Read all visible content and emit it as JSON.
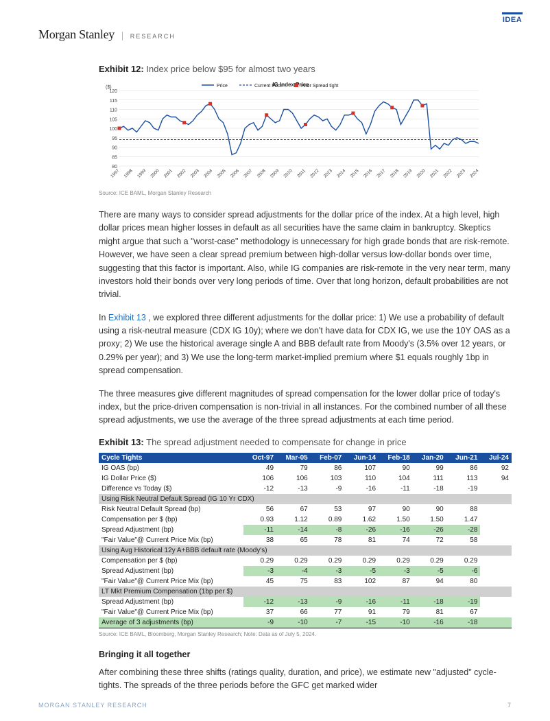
{
  "brand": {
    "logo": "Morgan Stanley",
    "research": "RESEARCH"
  },
  "idea": "IDEA",
  "exhibit12": {
    "num": "Exhibit 12:",
    "title": "Index price below $95 for almost two years",
    "type": "line",
    "chart_title": "IG Index Price",
    "ylabel": "($)",
    "ylim": [
      80,
      120
    ],
    "ytick_step": 5,
    "years": [
      "1997",
      "1998",
      "1999",
      "2000",
      "2001",
      "2002",
      "2003",
      "2004",
      "2005",
      "2006",
      "2007",
      "2008",
      "2009",
      "2010",
      "2011",
      "2012",
      "2013",
      "2014",
      "2015",
      "2016",
      "2017",
      "2018",
      "2019",
      "2020",
      "2021",
      "2022",
      "2023",
      "2024"
    ],
    "legend": [
      {
        "label": "Price",
        "color": "#1a4fa0",
        "type": "line"
      },
      {
        "label": "Current Price",
        "color": "#1a4fa0",
        "type": "dash"
      },
      {
        "label": "Prior Spread tight",
        "color": "#d0342c",
        "type": "marker"
      }
    ],
    "current_price": 94,
    "series_color": "#1a4fa0",
    "marker_color": "#d0342c",
    "grid_color": "#d9d9d9",
    "background_color": "#ffffff",
    "price_series": [
      100,
      101,
      99,
      100,
      98,
      101,
      104,
      103,
      100,
      99,
      105,
      107,
      106,
      106,
      104,
      103,
      102,
      104,
      107,
      109,
      112,
      113,
      110,
      105,
      103,
      97,
      86,
      87,
      92,
      100,
      102,
      103,
      99,
      101,
      107,
      105,
      103,
      104,
      110,
      110,
      108,
      104,
      100,
      102,
      105,
      107,
      106,
      104,
      105,
      101,
      99,
      102,
      107,
      107,
      108,
      105,
      103,
      97,
      102,
      109,
      112,
      114,
      113,
      111,
      110,
      102,
      106,
      110,
      115,
      115,
      112,
      113,
      89,
      91,
      89,
      92,
      91,
      94,
      95,
      94,
      92,
      93,
      93,
      92
    ],
    "markers_idx": [
      0,
      15,
      21,
      34,
      43,
      54,
      63,
      70
    ],
    "source": "Source: ICE BAML, Morgan Stanley Research"
  },
  "body": {
    "p1": "There are many ways to consider spread adjustments for the dollar price of the index. At a high level, high dollar prices mean higher losses in default as all securities have the same claim in bankruptcy. Skeptics might argue that such a \"worst-case\" methodology is unnecessary for high grade bonds that are risk-remote. However, we have seen a clear spread premium between high-dollar versus low-dollar bonds over time, suggesting that this factor is important. Also, while IG companies are risk-remote in the very near term, many investors hold their bonds over very long periods of time. Over that long horizon, default probabilities are not trivial.",
    "p2a": "In ",
    "p2link": "Exhibit 13",
    "p2b": " , we explored three different adjustments for the dollar price: 1) We use a probability of default using a risk-neutral measure (CDX IG 10y); where we don't have data for CDX IG, we use the 10Y OAS as a proxy; 2) We use the historical average single A and BBB default rate from Moody's (3.5% over 12 years, or 0.29% per year); and 3) We use the long-term market-implied premium where $1 equals roughly 1bp in spread compensation.",
    "p3": "The three measures give different magnitudes of spread compensation for the lower dollar price of today's index, but the price-driven compensation is non-trivial in all instances. For the combined number of all these spread adjustments, we use the average of the three spread adjustments at each time period."
  },
  "exhibit13": {
    "num": "Exhibit 13:",
    "title": "The spread adjustment needed to compensate for change in price",
    "columns": [
      "Cycle Tights",
      "Oct-97",
      "Mar-05",
      "Feb-07",
      "Jun-14",
      "Feb-18",
      "Jan-20",
      "Jun-21",
      "Jul-24"
    ],
    "rows": [
      {
        "cells": [
          "IG OAS (bp)",
          "49",
          "79",
          "86",
          "107",
          "90",
          "99",
          "86",
          "92"
        ]
      },
      {
        "cells": [
          "IG Dollar Price ($)",
          "106",
          "106",
          "103",
          "110",
          "104",
          "111",
          "113",
          "94"
        ]
      },
      {
        "cells": [
          "Difference vs Today ($)",
          "-12",
          "-13",
          "-9",
          "-16",
          "-11",
          "-18",
          "-19",
          ""
        ]
      },
      {
        "sub": "Using Risk Neutral Default Spread (IG 10 Yr CDX)"
      },
      {
        "cells": [
          "Risk Neutral Default Spread (bp)",
          "56",
          "67",
          "53",
          "97",
          "90",
          "90",
          "88",
          ""
        ]
      },
      {
        "cells": [
          "Compensation per $ (bp)",
          "0.93",
          "1.12",
          "0.89",
          "1.62",
          "1.50",
          "1.50",
          "1.47",
          ""
        ]
      },
      {
        "cells": [
          "Spread Adjustment (bp)",
          "-11",
          "-14",
          "-8",
          "-26",
          "-16",
          "-26",
          "-28",
          ""
        ],
        "hl": true
      },
      {
        "cells": [
          "\"Fair Value\"@ Current Price Mix (bp)",
          "38",
          "65",
          "78",
          "81",
          "74",
          "72",
          "58",
          ""
        ]
      },
      {
        "sub": "Using Avg Historical 12y A+BBB default rate (Moody's)"
      },
      {
        "cells": [
          "Compensation per $ (bp)",
          "0.29",
          "0.29",
          "0.29",
          "0.29",
          "0.29",
          "0.29",
          "0.29",
          ""
        ]
      },
      {
        "cells": [
          "Spread Adjustment (bp)",
          "-3",
          "-4",
          "-3",
          "-5",
          "-3",
          "-5",
          "-6",
          ""
        ],
        "hl": true
      },
      {
        "cells": [
          "\"Fair Value\"@ Current Price Mix (bp)",
          "45",
          "75",
          "83",
          "102",
          "87",
          "94",
          "80",
          ""
        ]
      },
      {
        "sub": "LT Mkt Premium Compensation (1bp per $)"
      },
      {
        "cells": [
          "Spread Adjustment (bp)",
          "-12",
          "-13",
          "-9",
          "-16",
          "-11",
          "-18",
          "-19",
          ""
        ],
        "hl": true
      },
      {
        "cells": [
          "\"Fair Value\"@ Current Price Mix (bp)",
          "37",
          "66",
          "77",
          "91",
          "79",
          "81",
          "67",
          ""
        ]
      },
      {
        "cells": [
          "Average of 3 adjustments (bp)",
          "-9",
          "-10",
          "-7",
          "-15",
          "-10",
          "-16",
          "-18",
          ""
        ],
        "hl_row": true,
        "border": true
      }
    ],
    "source": "Source: ICE BAML, Bloomberg, Morgan Stanley Research; Note: Data as of July 5, 2024.",
    "header_bg": "#1a4fa0",
    "sub_bg": "#d0d0d0",
    "hl_bg": "#b8e0b8"
  },
  "closing": {
    "head": "Bringing it all together",
    "p": "After combining these three shifts (ratings quality, duration, and price), we estimate new \"adjusted\" cycle-tights. The spreads of the three periods before the GFC get marked wider"
  },
  "footer": {
    "left": "MORGAN STANLEY RESEARCH",
    "page": "7"
  }
}
